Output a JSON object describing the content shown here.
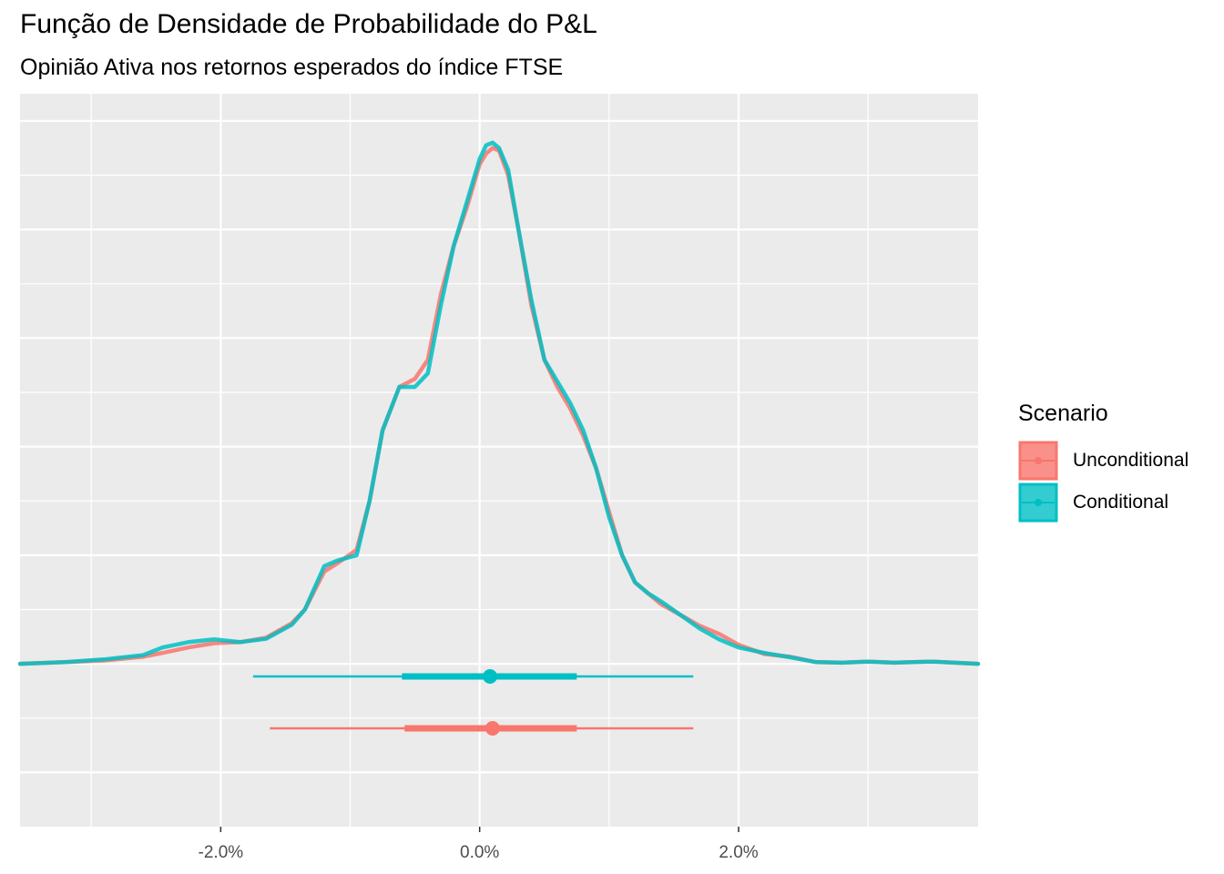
{
  "title": "Função de Densidade de Probabilidade do P&L",
  "subtitle": "Opinião Ativa nos retornos esperados do índice FTSE",
  "chart_data": {
    "type": "line",
    "xlabel": "",
    "ylabel": "",
    "xlim": [
      -3.55,
      3.85
    ],
    "ylim": [
      -0.3,
      1.05
    ],
    "x_ticks": [
      -2.0,
      0.0,
      2.0
    ],
    "x_tick_labels": [
      "-2.0%",
      "0.0%",
      "2.0%"
    ],
    "grid": true,
    "legend": {
      "title": "Scenario",
      "position": "right",
      "entries": [
        "Unconditional",
        "Conditional"
      ]
    },
    "colors": {
      "Unconditional": "#F8766D",
      "Conditional": "#00BFC4"
    },
    "series": [
      {
        "name": "Unconditional",
        "x": [
          -3.55,
          -3.2,
          -2.9,
          -2.6,
          -2.45,
          -2.25,
          -2.05,
          -1.85,
          -1.65,
          -1.45,
          -1.35,
          -1.2,
          -1.1,
          -0.95,
          -0.85,
          -0.75,
          -0.62,
          -0.5,
          -0.4,
          -0.3,
          -0.2,
          -0.1,
          0.0,
          0.05,
          0.1,
          0.15,
          0.22,
          0.3,
          0.4,
          0.5,
          0.6,
          0.7,
          0.8,
          0.9,
          1.0,
          1.1,
          1.2,
          1.3,
          1.4,
          1.55,
          1.7,
          1.85,
          2.0,
          2.2,
          2.4,
          2.6,
          2.8,
          3.0,
          3.2,
          3.5,
          3.85
        ],
        "y": [
          0.0,
          0.003,
          0.006,
          0.013,
          0.02,
          0.03,
          0.038,
          0.04,
          0.048,
          0.075,
          0.1,
          0.17,
          0.185,
          0.21,
          0.3,
          0.43,
          0.51,
          0.525,
          0.56,
          0.68,
          0.77,
          0.84,
          0.92,
          0.94,
          0.95,
          0.945,
          0.9,
          0.8,
          0.66,
          0.56,
          0.51,
          0.47,
          0.42,
          0.36,
          0.28,
          0.2,
          0.15,
          0.13,
          0.11,
          0.09,
          0.07,
          0.055,
          0.035,
          0.018,
          0.013,
          0.003,
          0.002,
          0.004,
          0.002,
          0.004,
          0.0
        ]
      },
      {
        "name": "Conditional",
        "x": [
          -3.55,
          -3.2,
          -2.9,
          -2.6,
          -2.45,
          -2.25,
          -2.05,
          -1.85,
          -1.65,
          -1.45,
          -1.35,
          -1.2,
          -1.1,
          -0.95,
          -0.85,
          -0.75,
          -0.62,
          -0.5,
          -0.4,
          -0.3,
          -0.2,
          -0.1,
          0.0,
          0.05,
          0.1,
          0.15,
          0.22,
          0.3,
          0.4,
          0.5,
          0.6,
          0.7,
          0.8,
          0.9,
          1.0,
          1.1,
          1.2,
          1.3,
          1.4,
          1.55,
          1.7,
          1.85,
          2.0,
          2.2,
          2.4,
          2.6,
          2.8,
          3.0,
          3.2,
          3.5,
          3.85
        ],
        "y": [
          0.0,
          0.003,
          0.008,
          0.016,
          0.03,
          0.04,
          0.045,
          0.04,
          0.046,
          0.072,
          0.1,
          0.18,
          0.19,
          0.2,
          0.3,
          0.43,
          0.51,
          0.51,
          0.535,
          0.66,
          0.77,
          0.85,
          0.93,
          0.955,
          0.96,
          0.95,
          0.91,
          0.8,
          0.67,
          0.56,
          0.52,
          0.48,
          0.43,
          0.36,
          0.27,
          0.2,
          0.15,
          0.13,
          0.115,
          0.09,
          0.065,
          0.045,
          0.03,
          0.02,
          0.012,
          0.003,
          0.002,
          0.004,
          0.002,
          0.004,
          0.0
        ]
      }
    ],
    "intervals": [
      {
        "name": "Conditional",
        "point": 0.08,
        "inner": [
          -0.6,
          0.75
        ],
        "outer": [
          -1.75,
          1.65
        ]
      },
      {
        "name": "Unconditional",
        "point": 0.1,
        "inner": [
          -0.58,
          0.75
        ],
        "outer": [
          -1.62,
          1.65
        ]
      }
    ]
  }
}
